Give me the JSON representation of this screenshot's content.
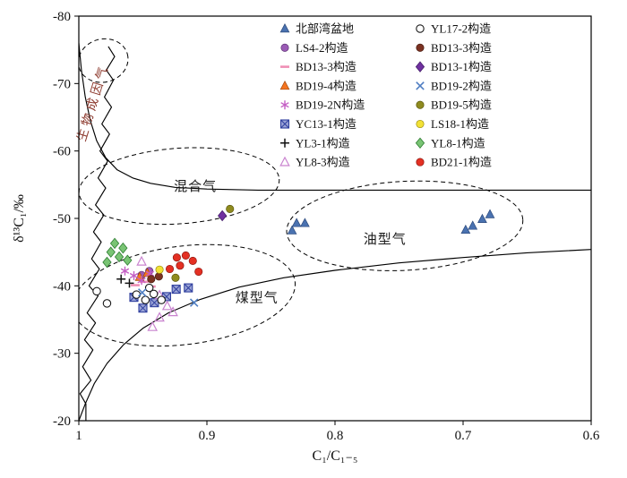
{
  "chart_data": {
    "type": "scatter",
    "title": "",
    "xlabel": "C₁/C₁₋₅",
    "ylabel": "δ¹³C₁/‰",
    "x_range": [
      1.0,
      0.6
    ],
    "y_range": [
      -80,
      -20
    ],
    "axes_reversed": {
      "x": true,
      "y": true
    },
    "x_ticks": {
      "values": [
        1,
        0.9,
        0.8,
        0.7,
        0.6
      ],
      "labels": [
        "1",
        "0.9",
        "0.8",
        "0.7",
        "0.6"
      ]
    },
    "y_ticks": {
      "values": [
        -80,
        -70,
        -60,
        -50,
        -40,
        -30,
        -20
      ],
      "labels": [
        "-80",
        "-70",
        "-60",
        "-50",
        "-40",
        "-30",
        "-20"
      ]
    },
    "regions": [
      {
        "id": "biogenic-gas",
        "label": "生物成因气",
        "x": 0.986,
        "y": -67.0,
        "rotation": -73,
        "color": "#8d3a2e",
        "letter_spacing": 4,
        "font_size": 14
      },
      {
        "id": "mixed-gas",
        "label": "混合气",
        "x": 0.909,
        "y": -54.1,
        "rotation": 0,
        "color": "#1a1a1a",
        "letter_spacing": 1,
        "font_size": 15
      },
      {
        "id": "oil-type-gas",
        "label": "油型气",
        "x": 0.761,
        "y": -46.3,
        "rotation": 0,
        "color": "#1a1a1a",
        "letter_spacing": 1,
        "font_size": 15
      },
      {
        "id": "coal-type-gas",
        "label": "煤型气",
        "x": 0.861,
        "y": -37.6,
        "rotation": 0,
        "color": "#1a1a1a",
        "letter_spacing": 1,
        "font_size": 15
      }
    ],
    "ellipses": [
      {
        "name": "biogenic-zone",
        "cx": 0.981,
        "cy": -73.4,
        "rx": 0.0196,
        "ry": 3.2,
        "rotation": -15
      },
      {
        "name": "mixed-gas-zone",
        "cx": 0.9217,
        "cy": -54.8,
        "rx": 0.0783,
        "ry": 5.6,
        "rotation": -4
      },
      {
        "name": "oil-gas-zone",
        "cx": 0.7455,
        "cy": -48.9,
        "rx": 0.0923,
        "ry": 6.6,
        "rotation": -3
      },
      {
        "name": "coal-gas-zone",
        "cx": 0.918,
        "cy": -38.6,
        "rx": 0.0874,
        "ry": 7.3,
        "rotation": -7
      }
    ],
    "boundaries": [
      {
        "name": "upper-boundary",
        "points": [
          [
            1.0,
            -76
          ],
          [
            0.998,
            -72
          ],
          [
            0.995,
            -68
          ],
          [
            0.991,
            -64.5
          ],
          [
            0.986,
            -61.5
          ],
          [
            0.979,
            -59
          ],
          [
            0.97,
            -57.2
          ],
          [
            0.958,
            -56
          ],
          [
            0.944,
            -55.2
          ],
          [
            0.925,
            -54.6
          ],
          [
            0.9,
            -54.35
          ],
          [
            0.86,
            -54.2
          ],
          [
            0.8,
            -54.2
          ],
          [
            0.6,
            -54.2
          ]
        ]
      },
      {
        "name": "lower-boundary",
        "points": [
          [
            1.0,
            -20
          ],
          [
            0.995,
            -22.5
          ],
          [
            0.988,
            -25.5
          ],
          [
            0.978,
            -28.5
          ],
          [
            0.965,
            -31.3
          ],
          [
            0.95,
            -33.7
          ],
          [
            0.93,
            -36
          ],
          [
            0.905,
            -38
          ],
          [
            0.875,
            -39.8
          ],
          [
            0.84,
            -41.2
          ],
          [
            0.8,
            -42.3
          ],
          [
            0.75,
            -43.4
          ],
          [
            0.7,
            -44.2
          ],
          [
            0.65,
            -44.9
          ],
          [
            0.6,
            -45.4
          ]
        ]
      },
      {
        "name": "zigzag-boundary",
        "points": [
          [
            0.9945,
            -20
          ],
          [
            0.9945,
            -22.5
          ],
          [
            0.999,
            -24
          ],
          [
            0.9905,
            -26
          ],
          [
            0.997,
            -28
          ],
          [
            0.989,
            -30.5
          ],
          [
            0.9955,
            -32
          ],
          [
            0.987,
            -34.5
          ],
          [
            0.9935,
            -36
          ],
          [
            0.985,
            -38.5
          ],
          [
            0.992,
            -40
          ],
          [
            0.984,
            -42.5
          ],
          [
            0.99,
            -44
          ],
          [
            0.9825,
            -46.5
          ],
          [
            0.9885,
            -48
          ],
          [
            0.9805,
            -50.5
          ],
          [
            0.987,
            -52
          ],
          [
            0.979,
            -54.5
          ],
          [
            0.985,
            -56
          ],
          [
            0.9775,
            -58.5
          ],
          [
            0.9835,
            -60
          ],
          [
            0.976,
            -62.5
          ],
          [
            0.982,
            -64
          ],
          [
            0.9745,
            -66.5
          ],
          [
            0.98,
            -68
          ],
          [
            0.973,
            -70.5
          ],
          [
            0.9785,
            -72
          ],
          [
            0.972,
            -74
          ],
          [
            0.977,
            -75.5
          ]
        ]
      }
    ],
    "series": [
      {
        "id": "beibuwan-basin",
        "name": "北部湾盆地",
        "marker": "triangle",
        "color": "#4a72b0",
        "edge": "#2c4a7c",
        "points": [
          [
            0.83,
            -49.3
          ],
          [
            0.8235,
            -49.3
          ],
          [
            0.8335,
            -48.2
          ],
          [
            0.698,
            -48.3
          ],
          [
            0.6925,
            -48.9
          ],
          [
            0.685,
            -49.9
          ],
          [
            0.679,
            -50.6
          ]
        ]
      },
      {
        "id": "ls4-2",
        "name": "LS4-2构造",
        "marker": "circle",
        "color": "#9a5bb5",
        "edge": "#5e3375",
        "points": [
          [
            0.945,
            -42.2
          ],
          [
            0.951,
            -41.6
          ]
        ]
      },
      {
        "id": "bd13-3-dash",
        "name": "BD13-3构造",
        "marker": "dash",
        "color": "#ef8fb5",
        "points": [
          [
            0.956,
            -40.1
          ],
          [
            0.949,
            -40.6
          ],
          [
            0.9435,
            -39.9
          ]
        ]
      },
      {
        "id": "bd19-4",
        "name": "BD19-4构造",
        "marker": "triangle",
        "color": "#f5741f",
        "edge": "#a34a0e",
        "points": [
          [
            0.9525,
            -41.3
          ],
          [
            0.9465,
            -41.9
          ]
        ]
      },
      {
        "id": "bd19-2n",
        "name": "BD19-2N构造",
        "marker": "asterisk",
        "color": "#c45ec4",
        "points": [
          [
            0.964,
            -42.2
          ],
          [
            0.957,
            -41.5
          ],
          [
            0.951,
            -40.8
          ],
          [
            0.9445,
            -41.8
          ]
        ]
      },
      {
        "id": "yc13-1",
        "name": "YC13-1构造",
        "marker": "square-x",
        "color": "#9aa3d6",
        "edge": "#2f3f9e",
        "points": [
          [
            0.957,
            -38.3
          ],
          [
            0.95,
            -36.7
          ],
          [
            0.941,
            -37.5
          ],
          [
            0.9315,
            -38.4
          ],
          [
            0.924,
            -39.5
          ],
          [
            0.9145,
            -39.7
          ]
        ]
      },
      {
        "id": "yl3-1",
        "name": "YL3-1构造",
        "marker": "plus",
        "color": "#111111",
        "points": [
          [
            0.967,
            -41.0
          ],
          [
            0.9605,
            -40.4
          ]
        ]
      },
      {
        "id": "yl8-3",
        "name": "YL8-3构造",
        "marker": "triangle-open",
        "color": "#c983cf",
        "points": [
          [
            0.951,
            -43.6
          ],
          [
            0.937,
            -38.6
          ],
          [
            0.931,
            -37.0
          ],
          [
            0.937,
            -35.3
          ],
          [
            0.9425,
            -33.9
          ],
          [
            0.9265,
            -36.1
          ]
        ]
      },
      {
        "id": "yl17-2",
        "name": "YL17-2构造",
        "marker": "circle-open",
        "color": "#1a1a1a",
        "points": [
          [
            0.986,
            -39.2
          ],
          [
            0.978,
            -37.4
          ],
          [
            0.955,
            -38.7
          ],
          [
            0.948,
            -37.9
          ],
          [
            0.9415,
            -38.8
          ],
          [
            0.9355,
            -37.9
          ],
          [
            0.945,
            -39.7
          ]
        ]
      },
      {
        "id": "bd13-3",
        "name": "BD13-3构造",
        "marker": "circle",
        "color": "#7b3222",
        "edge": "#4a1d12",
        "points": [
          [
            0.9435,
            -41.0
          ],
          [
            0.9375,
            -41.4
          ]
        ]
      },
      {
        "id": "bd13-1",
        "name": "BD13-1构造",
        "marker": "diamond",
        "color": "#7030a0",
        "edge": "#46206b",
        "points": [
          [
            0.888,
            -50.4
          ]
        ]
      },
      {
        "id": "bd19-2",
        "name": "BD19-2构造",
        "marker": "x",
        "color": "#4f7ec2",
        "points": [
          [
            0.91,
            -37.5
          ],
          [
            0.9505,
            -39.0
          ]
        ]
      },
      {
        "id": "bd19-5",
        "name": "BD19-5构造",
        "marker": "circle",
        "color": "#8f8b1f",
        "edge": "#5c590e",
        "points": [
          [
            0.882,
            -51.4
          ],
          [
            0.9245,
            -41.2
          ]
        ]
      },
      {
        "id": "ls18-1",
        "name": "LS18-1构造",
        "marker": "circle",
        "color": "#f2e136",
        "edge": "#9a8d10",
        "points": [
          [
            0.937,
            -42.4
          ]
        ]
      },
      {
        "id": "yl8-1",
        "name": "YL8-1构造",
        "marker": "diamond",
        "color": "#79c474",
        "edge": "#2e7d32",
        "points": [
          [
            0.972,
            -46.3
          ],
          [
            0.9655,
            -45.6
          ],
          [
            0.975,
            -45.0
          ],
          [
            0.9685,
            -44.3
          ],
          [
            0.962,
            -43.8
          ],
          [
            0.978,
            -43.5
          ]
        ]
      },
      {
        "id": "bd21-1",
        "name": "BD21-1构造",
        "marker": "circle",
        "color": "#e43023",
        "edge": "#8f1710",
        "points": [
          [
            0.9235,
            -44.2
          ],
          [
            0.9165,
            -44.5
          ],
          [
            0.911,
            -43.7
          ],
          [
            0.921,
            -43.0
          ],
          [
            0.929,
            -42.5
          ],
          [
            0.9065,
            -42.1
          ]
        ]
      }
    ],
    "legend": {
      "columns": 2,
      "col_split": 8,
      "position": "top-right-inside"
    }
  }
}
